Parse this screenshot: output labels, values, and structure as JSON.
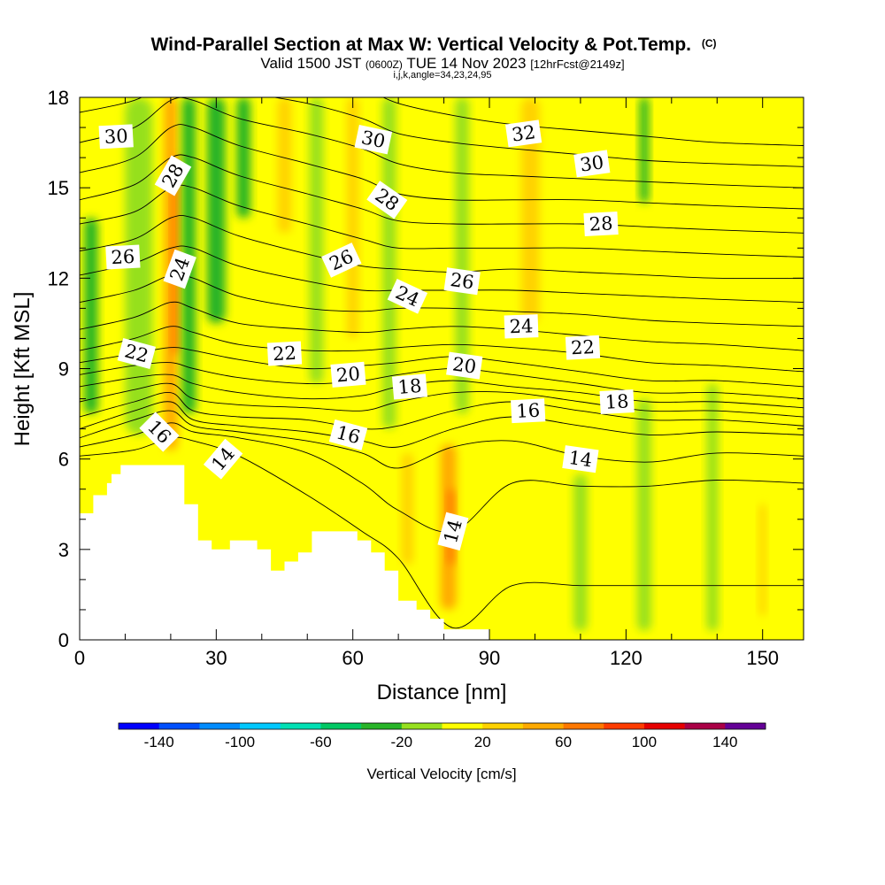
{
  "chart_data": {
    "type": "heatmap",
    "title": "Wind-Parallel Section at Max W: Vertical Velocity & Pot.Temp.",
    "title_mark": "(C)",
    "subtitle": {
      "valid": "Valid 1500 JST",
      "utc": "(0600Z)",
      "date": "TUE 14 Nov 2023",
      "fcst": "[12hrFcst@2149z]"
    },
    "params_line": "i,j,k,angle=34,23,24,95",
    "xlabel": "Distance [nm]",
    "ylabel": "Height [Kft MSL]",
    "xlim": [
      0,
      159
    ],
    "ylim": [
      0,
      18
    ],
    "x_ticks": [
      0,
      30,
      60,
      90,
      120,
      150
    ],
    "y_ticks": [
      0,
      3,
      6,
      9,
      12,
      15,
      18
    ],
    "colorbar": {
      "label": "Vertical Velocity [cm/s]",
      "range": [
        -160,
        160
      ],
      "tick_values": [
        -140,
        -100,
        -60,
        -20,
        20,
        60,
        100,
        140
      ],
      "tick_labels": [
        "-140",
        "-100",
        "-60",
        "-20",
        "20",
        "60",
        "100",
        "140"
      ],
      "bins": [
        {
          "lo": -160,
          "hi": -140,
          "color": "#0000ff"
        },
        {
          "lo": -140,
          "hi": -120,
          "color": "#0050ff"
        },
        {
          "lo": -120,
          "hi": -100,
          "color": "#008cff"
        },
        {
          "lo": -100,
          "hi": -80,
          "color": "#00c8ff"
        },
        {
          "lo": -80,
          "hi": -60,
          "color": "#00e0b4"
        },
        {
          "lo": -60,
          "hi": -40,
          "color": "#00c864"
        },
        {
          "lo": -40,
          "hi": -20,
          "color": "#28b428"
        },
        {
          "lo": -20,
          "hi": 0,
          "color": "#96e01e"
        },
        {
          "lo": 0,
          "hi": 20,
          "color": "#ffff00"
        },
        {
          "lo": 20,
          "hi": 40,
          "color": "#ffd200"
        },
        {
          "lo": 40,
          "hi": 60,
          "color": "#ffaa00"
        },
        {
          "lo": 60,
          "hi": 80,
          "color": "#ff7800"
        },
        {
          "lo": 80,
          "hi": 100,
          "color": "#ff3c00"
        },
        {
          "lo": 100,
          "hi": 120,
          "color": "#e60000"
        },
        {
          "lo": 120,
          "hi": 140,
          "color": "#aa0046"
        },
        {
          "lo": 140,
          "hi": 160,
          "color": "#640096"
        }
      ]
    },
    "terrain": [
      [
        0,
        4.2
      ],
      [
        3,
        4.2
      ],
      [
        3,
        4.8
      ],
      [
        6,
        4.8
      ],
      [
        6,
        5.2
      ],
      [
        7,
        5.2
      ],
      [
        7,
        5.5
      ],
      [
        9,
        5.5
      ],
      [
        9,
        5.8
      ],
      [
        23,
        5.8
      ],
      [
        23,
        4.5
      ],
      [
        26,
        4.5
      ],
      [
        26,
        3.3
      ],
      [
        29,
        3.3
      ],
      [
        29,
        3.0
      ],
      [
        33,
        3.0
      ],
      [
        33,
        3.3
      ],
      [
        39,
        3.3
      ],
      [
        39,
        3.0
      ],
      [
        42,
        3.0
      ],
      [
        42,
        2.3
      ],
      [
        45,
        2.3
      ],
      [
        45,
        2.6
      ],
      [
        48,
        2.6
      ],
      [
        48,
        2.9
      ],
      [
        51,
        2.9
      ],
      [
        51,
        3.6
      ],
      [
        61,
        3.6
      ],
      [
        61,
        3.3
      ],
      [
        64,
        3.3
      ],
      [
        64,
        2.9
      ],
      [
        67,
        2.9
      ],
      [
        67,
        2.3
      ],
      [
        70,
        2.3
      ],
      [
        70,
        1.3
      ],
      [
        74,
        1.3
      ],
      [
        74,
        1.0
      ],
      [
        77,
        1.0
      ],
      [
        77,
        0.7
      ],
      [
        80,
        0.7
      ],
      [
        80,
        0.35
      ],
      [
        90,
        0.35
      ]
    ],
    "background_class_w": 10,
    "w_features": [
      {
        "x": 2.5,
        "y0": 7.5,
        "y1": 14.0,
        "w": 3,
        "value": -30
      },
      {
        "x": 13,
        "y0": 6.8,
        "y1": 18,
        "w": 6,
        "value": -10
      },
      {
        "x": 20,
        "y0": 6.3,
        "y1": 18,
        "w": 3,
        "value": 50
      },
      {
        "x": 21,
        "y0": 9.5,
        "y1": 16.0,
        "w": 1.5,
        "value": 70
      },
      {
        "x": 24,
        "y0": 7.5,
        "y1": 18,
        "w": 3,
        "value": -30
      },
      {
        "x": 30,
        "y0": 10.5,
        "y1": 18,
        "w": 4,
        "value": -30
      },
      {
        "x": 36,
        "y0": 14.0,
        "y1": 18,
        "w": 3,
        "value": -30
      },
      {
        "x": 45,
        "y0": 13.5,
        "y1": 18,
        "w": 3,
        "value": 30
      },
      {
        "x": 52,
        "y0": 8.5,
        "y1": 18,
        "w": 3,
        "value": -10
      },
      {
        "x": 60,
        "y0": 10.0,
        "y1": 18,
        "w": 2.5,
        "value": 30
      },
      {
        "x": 68,
        "y0": 7.0,
        "y1": 18,
        "w": 3,
        "value": -10
      },
      {
        "x": 72,
        "y0": 2.5,
        "y1": 6.2,
        "w": 2.5,
        "value": 30
      },
      {
        "x": 81,
        "y0": 1.0,
        "y1": 6.5,
        "w": 3.5,
        "value": 40
      },
      {
        "x": 81.5,
        "y0": 2.5,
        "y1": 5.0,
        "w": 1.5,
        "value": 60
      },
      {
        "x": 84,
        "y0": 7.5,
        "y1": 18,
        "w": 3,
        "value": -10
      },
      {
        "x": 99,
        "y0": 10.5,
        "y1": 18,
        "w": 4,
        "value": 30
      },
      {
        "x": 110,
        "y0": 0.3,
        "y1": 5.5,
        "w": 3,
        "value": -10
      },
      {
        "x": 124,
        "y0": 0.3,
        "y1": 8.0,
        "w": 3,
        "value": -10
      },
      {
        "x": 124,
        "y0": 14.5,
        "y1": 18,
        "w": 2,
        "value": -30
      },
      {
        "x": 139,
        "y0": 0.3,
        "y1": 8.5,
        "w": 2.5,
        "value": -10
      },
      {
        "x": 150,
        "y0": 0.8,
        "y1": 4.5,
        "w": 1.5,
        "value": 30
      }
    ],
    "theta_contours": {
      "levels": [
        13,
        14,
        15,
        16,
        17,
        18,
        19,
        20,
        21,
        22,
        23,
        24,
        25,
        26,
        27,
        28,
        29,
        30,
        31,
        32
      ],
      "profile_x": [
        0,
        12,
        20,
        25,
        35,
        50,
        62,
        70,
        82,
        95,
        110,
        125,
        140,
        159
      ],
      "profiles": [
        [
          6.1,
          6.3,
          6.7,
          6.6,
          6.1,
          4.8,
          3.6,
          2.7,
          0.4,
          1.8,
          1.8,
          1.8,
          1.8,
          1.8
        ],
        [
          6.4,
          6.8,
          7.2,
          6.9,
          6.7,
          6.2,
          5.2,
          4.3,
          3.6,
          5.2,
          5.1,
          5.1,
          5.3,
          5.2
        ],
        [
          6.7,
          7.3,
          7.6,
          7.1,
          6.9,
          6.6,
          6.2,
          5.7,
          6.4,
          6.6,
          6.1,
          5.9,
          6.2,
          6.1
        ],
        [
          7.0,
          7.6,
          7.9,
          7.3,
          7.1,
          6.9,
          6.6,
          6.4,
          7.0,
          7.4,
          7.1,
          6.8,
          6.9,
          6.8
        ],
        [
          7.4,
          7.9,
          8.2,
          7.6,
          7.4,
          7.3,
          7.0,
          7.1,
          7.6,
          7.9,
          7.6,
          7.3,
          7.3,
          7.1
        ],
        [
          7.9,
          8.3,
          8.5,
          8.0,
          7.8,
          7.7,
          7.6,
          7.9,
          8.2,
          8.2,
          7.9,
          7.6,
          7.6,
          7.4
        ],
        [
          8.4,
          8.7,
          8.8,
          8.5,
          8.2,
          8.0,
          8.1,
          8.4,
          8.6,
          8.4,
          8.2,
          7.9,
          7.9,
          7.7
        ],
        [
          8.8,
          9.1,
          9.2,
          9.0,
          8.7,
          8.5,
          8.6,
          8.8,
          9.0,
          8.8,
          8.5,
          8.2,
          8.2,
          8.0
        ],
        [
          9.2,
          9.5,
          9.7,
          9.6,
          9.3,
          9.0,
          9.1,
          9.2,
          9.4,
          9.2,
          8.9,
          8.6,
          8.6,
          8.4
        ],
        [
          9.6,
          10.0,
          10.4,
          10.2,
          9.8,
          9.6,
          9.6,
          9.7,
          9.8,
          9.7,
          9.5,
          9.2,
          9.1,
          8.9
        ],
        [
          10.3,
          10.7,
          11.2,
          11.0,
          10.5,
          10.3,
          10.2,
          10.3,
          10.4,
          10.3,
          10.1,
          9.9,
          9.8,
          9.6
        ],
        [
          11.2,
          11.6,
          12.1,
          12.0,
          11.4,
          11.0,
          10.9,
          11.0,
          11.0,
          10.9,
          10.8,
          10.6,
          10.5,
          10.4
        ],
        [
          12.1,
          12.5,
          13.0,
          13.0,
          12.4,
          11.9,
          11.6,
          11.6,
          11.6,
          11.6,
          11.5,
          11.4,
          11.3,
          11.2
        ],
        [
          12.9,
          13.3,
          14.0,
          14.0,
          13.4,
          12.8,
          12.4,
          12.3,
          12.2,
          12.3,
          12.2,
          12.1,
          12.0,
          12.0
        ],
        [
          13.8,
          14.2,
          15.0,
          15.0,
          14.4,
          13.8,
          13.3,
          13.0,
          13.0,
          13.0,
          13.0,
          12.9,
          12.8,
          12.7
        ],
        [
          14.6,
          15.1,
          16.0,
          16.0,
          15.4,
          14.8,
          14.3,
          13.9,
          13.8,
          13.8,
          13.8,
          13.7,
          13.6,
          13.5
        ],
        [
          15.5,
          16.0,
          17.0,
          17.0,
          16.4,
          15.8,
          15.3,
          14.8,
          14.6,
          14.6,
          14.6,
          14.5,
          14.4,
          14.3
        ],
        [
          16.5,
          17.0,
          17.9,
          17.9,
          17.3,
          16.8,
          16.3,
          15.8,
          15.5,
          15.4,
          15.3,
          15.2,
          15.1,
          15.0
        ],
        [
          17.5,
          17.9,
          18.5,
          18.5,
          18.2,
          17.8,
          17.3,
          16.8,
          16.5,
          16.3,
          16.1,
          15.9,
          15.8,
          15.7
        ],
        [
          18.4,
          18.7,
          19.2,
          19.2,
          19.0,
          18.7,
          18.3,
          17.8,
          17.4,
          17.1,
          16.9,
          16.7,
          16.5,
          16.4
        ]
      ]
    },
    "contour_labels": [
      {
        "text": "30",
        "x": 8,
        "y": 16.7,
        "angle": -3
      },
      {
        "text": "28",
        "x": 20.5,
        "y": 15.4,
        "angle": -60
      },
      {
        "text": "26",
        "x": 9.5,
        "y": 12.7,
        "angle": -3
      },
      {
        "text": "24",
        "x": 22,
        "y": 12.3,
        "angle": -70
      },
      {
        "text": "22",
        "x": 12.5,
        "y": 9.5,
        "angle": 15
      },
      {
        "text": "16",
        "x": 17.5,
        "y": 6.9,
        "angle": 45
      },
      {
        "text": "14",
        "x": 31.5,
        "y": 6.0,
        "angle": -50
      },
      {
        "text": "22",
        "x": 45,
        "y": 9.5,
        "angle": -3
      },
      {
        "text": "20",
        "x": 59,
        "y": 8.8,
        "angle": -5
      },
      {
        "text": "16",
        "x": 59,
        "y": 6.8,
        "angle": 15
      },
      {
        "text": "26",
        "x": 57.5,
        "y": 12.6,
        "angle": -25
      },
      {
        "text": "30",
        "x": 64.5,
        "y": 16.6,
        "angle": 12
      },
      {
        "text": "28",
        "x": 67.5,
        "y": 14.6,
        "angle": 35
      },
      {
        "text": "24",
        "x": 72,
        "y": 11.4,
        "angle": 25
      },
      {
        "text": "18",
        "x": 72.5,
        "y": 8.4,
        "angle": -5
      },
      {
        "text": "20",
        "x": 84.5,
        "y": 9.1,
        "angle": 8
      },
      {
        "text": "26",
        "x": 84,
        "y": 11.9,
        "angle": 8
      },
      {
        "text": "14",
        "x": 82,
        "y": 3.6,
        "angle": -75
      },
      {
        "text": "32",
        "x": 97.5,
        "y": 16.8,
        "angle": -8
      },
      {
        "text": "30",
        "x": 112.5,
        "y": 15.8,
        "angle": -8
      },
      {
        "text": "28",
        "x": 114.5,
        "y": 13.8,
        "angle": -3
      },
      {
        "text": "24",
        "x": 97,
        "y": 10.4,
        "angle": -2
      },
      {
        "text": "16",
        "x": 98.5,
        "y": 7.6,
        "angle": -3
      },
      {
        "text": "22",
        "x": 110.5,
        "y": 9.7,
        "angle": -3
      },
      {
        "text": "18",
        "x": 118,
        "y": 7.9,
        "angle": -3
      },
      {
        "text": "14",
        "x": 110,
        "y": 6.0,
        "angle": 8
      }
    ]
  }
}
